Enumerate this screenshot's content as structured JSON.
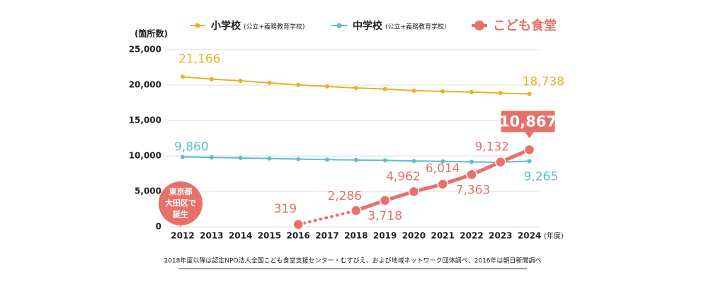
{
  "chart_data": {
    "type": "line",
    "y_label": "(箇所数)",
    "x_unit": "(年度)",
    "categories": [
      "2012",
      "2013",
      "2014",
      "2015",
      "2016",
      "2017",
      "2018",
      "2019",
      "2020",
      "2021",
      "2022",
      "2023",
      "2024"
    ],
    "ylim": [
      0,
      25000
    ],
    "yticks": [
      0,
      {
        "value": 5000,
        "label": "5,000"
      },
      {
        "value": 10000,
        "label": "10,000"
      },
      {
        "value": 15000,
        "label": "15,000"
      },
      {
        "value": 20000,
        "label": "20,000"
      },
      {
        "value": 25000,
        "label": "25,000"
      }
    ],
    "grid": true,
    "series": [
      {
        "name": "小学校",
        "name_note": "(公立+義務教育学校)",
        "color": "#e9b12a",
        "values": [
          21166,
          20836,
          20601,
          20313,
          20011,
          19794,
          19591,
          19432,
          19217,
          19107,
          19008,
          18880,
          18738
        ],
        "value_labels": [
          "21,166",
          null,
          null,
          null,
          null,
          null,
          null,
          null,
          null,
          null,
          null,
          null,
          "18,738"
        ]
      },
      {
        "name": "中学校",
        "name_note": "(公立+義務教育学校)",
        "color": "#5bbfc8",
        "values": [
          9860,
          9784,
          9707,
          9637,
          9555,
          9479,
          9421,
          9371,
          9291,
          9230,
          9164,
          9095,
          9265
        ],
        "value_labels": [
          "9,860",
          null,
          null,
          null,
          null,
          null,
          null,
          null,
          null,
          null,
          null,
          null,
          "9,265"
        ]
      },
      {
        "name": "こども食堂",
        "color": "#e8706a",
        "values": [
          null,
          null,
          null,
          null,
          319,
          null,
          2286,
          3718,
          4962,
          6014,
          7363,
          9132,
          10867
        ],
        "value_labels": [
          null,
          null,
          null,
          null,
          "319",
          null,
          "2,286",
          "3,718",
          "4,962",
          "6,014",
          "7,363",
          "9,132",
          "10,867"
        ]
      }
    ],
    "annotation": [
      "東京都",
      "大田区で",
      "誕生"
    ],
    "source": "2018年度以降は認定NPO法人全国こども食堂支援センター・むすびえ、および地域ネットワーク団体調べ、2016年は朝日新聞調べ"
  }
}
